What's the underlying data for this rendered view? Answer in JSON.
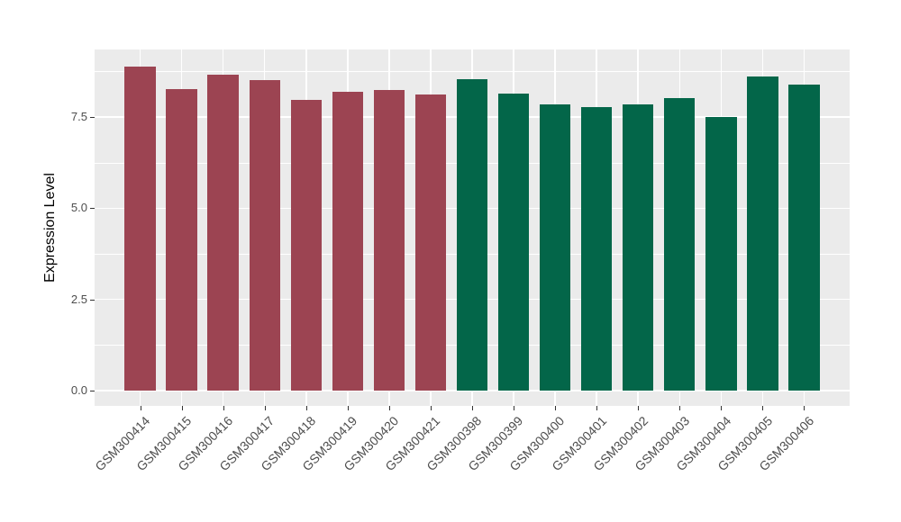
{
  "figure": {
    "background_color": "#ffffff",
    "panel_background_color": "#ebebeb",
    "gridline_color": "#ffffff",
    "tick_mark_color": "#333333",
    "tick_label_color": "#4d4d4d",
    "axis_title_color": "#000000"
  },
  "chart_data": {
    "type": "bar",
    "title": "",
    "xlabel": "",
    "ylabel": "Expression Level",
    "ylim": [
      -0.44,
      9.35
    ],
    "yticks": [
      0.0,
      2.5,
      5.0,
      7.5
    ],
    "ytick_labels": [
      "0.0",
      "2.5",
      "5.0",
      "7.5"
    ],
    "minor_yticks": [
      1.25,
      3.75,
      6.25,
      8.75
    ],
    "grid": true,
    "legend_position": "none",
    "orientation": "vertical",
    "groups": [
      {
        "name": "group-red",
        "color": "#9c4452"
      },
      {
        "name": "group-green",
        "color": "#036649"
      }
    ],
    "categories": [
      "GSM300414",
      "GSM300415",
      "GSM300416",
      "GSM300417",
      "GSM300418",
      "GSM300419",
      "GSM300420",
      "GSM300421",
      "GSM300398",
      "GSM300399",
      "GSM300400",
      "GSM300401",
      "GSM300402",
      "GSM300403",
      "GSM300404",
      "GSM300405",
      "GSM300406"
    ],
    "values": [
      8.87,
      8.27,
      8.67,
      8.51,
      7.98,
      8.2,
      8.25,
      8.12,
      8.54,
      8.15,
      7.85,
      7.76,
      7.85,
      8.01,
      7.5,
      8.6,
      8.38
    ],
    "group_index": [
      0,
      0,
      0,
      0,
      0,
      0,
      0,
      0,
      1,
      1,
      1,
      1,
      1,
      1,
      1,
      1,
      1
    ]
  }
}
